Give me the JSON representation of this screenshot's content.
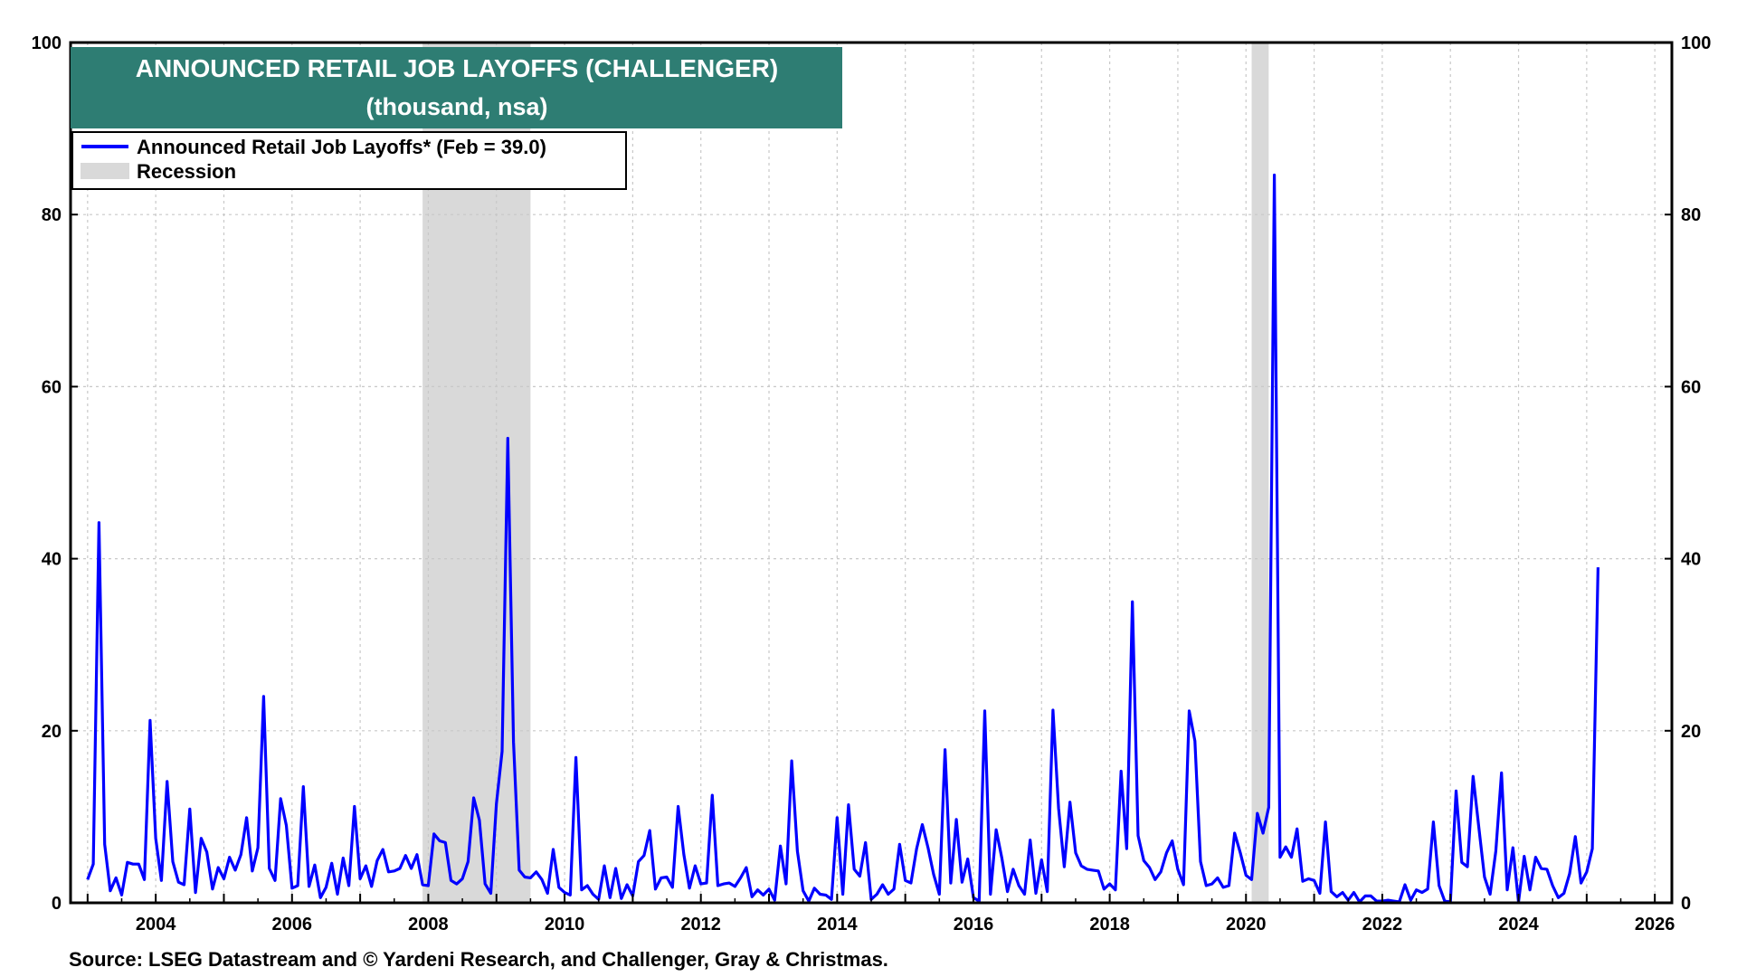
{
  "chart_data": {
    "type": "line",
    "title": "ANNOUNCED RETAIL JOB LAYOFFS (CHALLENGER)",
    "subtitle": "(thousand, nsa)",
    "source": "Source: LSEG Datastream and © Yardeni Research, and Challenger, Gray & Christmas.",
    "ylim": [
      0,
      100
    ],
    "yticks": [
      "0",
      "20",
      "40",
      "60",
      "80",
      "100"
    ],
    "xlim": [
      "2002-10",
      "2026-04"
    ],
    "xticks": [
      "2004",
      "2006",
      "2008",
      "2010",
      "2012",
      "2014",
      "2016",
      "2018",
      "2020",
      "2022",
      "2024",
      "2026"
    ],
    "grid": true,
    "legend_position": "top-left",
    "legend": [
      {
        "label": "Announced Retail Job Layoffs* (Feb = 39.0)",
        "type": "line",
        "color": "#0000ff"
      },
      {
        "label": "Recession",
        "type": "area",
        "color": "#d9d9d9"
      }
    ],
    "recessions": [
      {
        "start": "2007-12",
        "end": "2009-06"
      },
      {
        "start": "2020-02",
        "end": "2020-04"
      }
    ],
    "series": [
      {
        "name": "Announced Retail Job Layoffs* (Feb = 39.0)",
        "color": "#0000ff",
        "start": "2003-01",
        "frequency": "monthly",
        "values": [
          2.7,
          4.5,
          44.2,
          6.8,
          1.4,
          2.9,
          0.9,
          4.7,
          4.5,
          4.5,
          2.7,
          21.2,
          7.5,
          2.6,
          14.1,
          4.8,
          2.4,
          2.1,
          10.9,
          1.2,
          7.5,
          5.9,
          1.6,
          4.1,
          2.8,
          5.3,
          3.8,
          5.6,
          9.9,
          3.7,
          6.4,
          24.0,
          4.0,
          2.6,
          12.1,
          9.0,
          1.7,
          2.0,
          13.5,
          1.9,
          4.4,
          0.6,
          1.8,
          4.6,
          1.0,
          5.2,
          2.0,
          11.2,
          2.8,
          4.3,
          1.9,
          4.9,
          6.2,
          3.6,
          3.7,
          4.0,
          5.5,
          4.0,
          5.6,
          2.1,
          2.0,
          8.0,
          7.2,
          7.0,
          2.6,
          2.2,
          2.8,
          4.8,
          12.2,
          9.6,
          2.2,
          1.1,
          11.5,
          17.6,
          54.0,
          18.7,
          3.8,
          3.0,
          2.9,
          3.6,
          2.7,
          1.1,
          6.2,
          1.8,
          1.2,
          0.9,
          16.9,
          1.5,
          2.0,
          1.0,
          0.4,
          4.3,
          0.6,
          4.0,
          0.5,
          2.1,
          0.8,
          4.8,
          5.5,
          8.4,
          1.6,
          2.9,
          3.0,
          1.8,
          11.2,
          5.6,
          1.7,
          4.3,
          2.2,
          2.3,
          12.5,
          2.0,
          2.2,
          2.3,
          1.9,
          2.9,
          4.1,
          0.7,
          1.5,
          0.9,
          1.6,
          0.3,
          6.6,
          2.2,
          16.5,
          6.0,
          1.4,
          0.2,
          1.7,
          1.0,
          0.9,
          0.4,
          9.9,
          1.0,
          11.4,
          3.9,
          3.1,
          7.0,
          0.4,
          1.0,
          2.1,
          1.0,
          1.6,
          6.8,
          2.6,
          2.3,
          6.3,
          9.1,
          6.4,
          3.3,
          1.0,
          17.8,
          2.3,
          9.7,
          2.4,
          5.1,
          0.6,
          0.2,
          22.3,
          1.0,
          8.5,
          5.2,
          1.3,
          3.9,
          2.0,
          1.0,
          7.3,
          1.1,
          5.0,
          1.3,
          22.4,
          11.0,
          4.2,
          11.7,
          5.8,
          4.3,
          3.9,
          3.8,
          3.7,
          1.6,
          2.2,
          1.5,
          15.3,
          6.3,
          35.0,
          7.8,
          4.9,
          4.1,
          2.7,
          3.6,
          5.8,
          7.2,
          3.9,
          2.1,
          22.3,
          18.8,
          4.8,
          2.0,
          2.2,
          2.9,
          1.8,
          2.0,
          8.1,
          5.8,
          3.2,
          2.7,
          10.4,
          8.1,
          11.1,
          84.6,
          5.3,
          6.5,
          5.3,
          8.6,
          2.5,
          2.8,
          2.6,
          1.1,
          9.4,
          1.3,
          0.7,
          1.2,
          0.3,
          1.2,
          0.1,
          0.8,
          0.8,
          0.2,
          0.2,
          0.3,
          0.2,
          0.1,
          2.1,
          0.3,
          1.5,
          1.2,
          1.6,
          9.4,
          2.0,
          0.2,
          0.1,
          13.0,
          4.7,
          4.2,
          14.7,
          8.8,
          3.0,
          1.0,
          6.0,
          15.1,
          1.5,
          6.4,
          0.1,
          5.4,
          1.5,
          5.3,
          4.0,
          3.9,
          2.0,
          0.6,
          1.1,
          3.4,
          7.7,
          2.3,
          3.6,
          6.3,
          39.0
        ]
      }
    ]
  }
}
